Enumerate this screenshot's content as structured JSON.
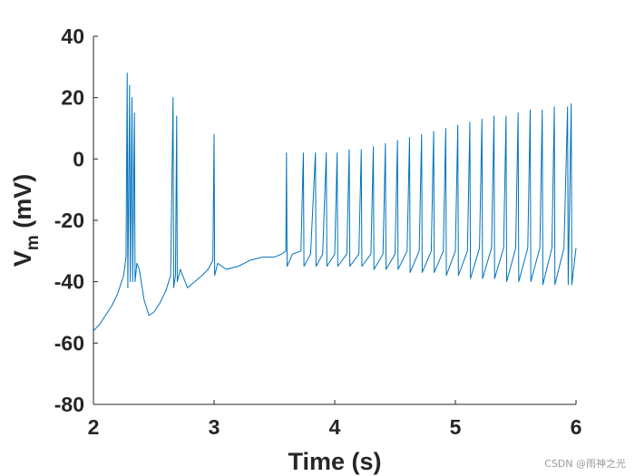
{
  "chart_data": {
    "type": "line",
    "title": "",
    "xlabel": "Time (s)",
    "ylabel": {
      "main": "V",
      "sub": "m",
      "unit": " (mV)"
    },
    "xlim": [
      2,
      6
    ],
    "ylim": [
      -80,
      40
    ],
    "xticks": [
      2,
      3,
      4,
      5,
      6
    ],
    "yticks": [
      -80,
      -60,
      -40,
      -20,
      0,
      20,
      40
    ],
    "grid": false,
    "line_color": "#0072BD",
    "series": [
      {
        "values": [
          [
            2.0,
            -56
          ],
          [
            2.05,
            -54
          ],
          [
            2.1,
            -51
          ],
          [
            2.15,
            -48
          ],
          [
            2.2,
            -44
          ],
          [
            2.25,
            -38
          ],
          [
            2.27,
            -32
          ],
          [
            2.28,
            28
          ],
          [
            2.285,
            -42
          ],
          [
            2.3,
            24
          ],
          [
            2.305,
            -40
          ],
          [
            2.32,
            20
          ],
          [
            2.325,
            -40
          ],
          [
            2.34,
            15
          ],
          [
            2.345,
            -40
          ],
          [
            2.36,
            -34
          ],
          [
            2.38,
            -36
          ],
          [
            2.42,
            -46
          ],
          [
            2.46,
            -51
          ],
          [
            2.5,
            -50
          ],
          [
            2.55,
            -47
          ],
          [
            2.6,
            -43
          ],
          [
            2.64,
            -38
          ],
          [
            2.66,
            20
          ],
          [
            2.665,
            -42
          ],
          [
            2.68,
            -38
          ],
          [
            2.69,
            14
          ],
          [
            2.695,
            -40
          ],
          [
            2.72,
            -36
          ],
          [
            2.78,
            -42
          ],
          [
            2.84,
            -40
          ],
          [
            2.9,
            -38
          ],
          [
            2.95,
            -36
          ],
          [
            2.99,
            -33
          ],
          [
            3.0,
            8
          ],
          [
            3.005,
            -38
          ],
          [
            3.03,
            -34
          ],
          [
            3.1,
            -36
          ],
          [
            3.2,
            -35
          ],
          [
            3.3,
            -33
          ],
          [
            3.4,
            -32
          ],
          [
            3.5,
            -32
          ],
          [
            3.56,
            -31
          ],
          [
            3.595,
            -30
          ],
          [
            3.6,
            2
          ],
          [
            3.605,
            -35
          ],
          [
            3.65,
            -31
          ],
          [
            3.72,
            -30
          ],
          [
            3.74,
            2
          ],
          [
            3.745,
            -35
          ],
          [
            3.8,
            -31
          ],
          [
            3.84,
            2
          ],
          [
            3.845,
            -35
          ],
          [
            3.9,
            -31
          ],
          [
            3.93,
            2
          ],
          [
            3.935,
            -35
          ],
          [
            4.0,
            -31
          ],
          [
            4.02,
            2
          ],
          [
            4.025,
            -35
          ],
          [
            4.1,
            -31
          ],
          [
            4.12,
            3
          ],
          [
            4.125,
            -35
          ],
          [
            4.2,
            -31
          ],
          [
            4.22,
            3
          ],
          [
            4.225,
            -35
          ],
          [
            4.3,
            -31
          ],
          [
            4.32,
            4
          ],
          [
            4.325,
            -36
          ],
          [
            4.4,
            -31
          ],
          [
            4.42,
            5
          ],
          [
            4.425,
            -36
          ],
          [
            4.5,
            -31
          ],
          [
            4.52,
            6
          ],
          [
            4.525,
            -36
          ],
          [
            4.6,
            -30
          ],
          [
            4.62,
            7
          ],
          [
            4.625,
            -37
          ],
          [
            4.7,
            -30
          ],
          [
            4.72,
            8
          ],
          [
            4.725,
            -37
          ],
          [
            4.8,
            -30
          ],
          [
            4.82,
            9
          ],
          [
            4.825,
            -37
          ],
          [
            4.9,
            -30
          ],
          [
            4.92,
            10
          ],
          [
            4.925,
            -38
          ],
          [
            5.0,
            -30
          ],
          [
            5.02,
            11
          ],
          [
            5.025,
            -38
          ],
          [
            5.1,
            -30
          ],
          [
            5.12,
            12
          ],
          [
            5.125,
            -39
          ],
          [
            5.2,
            -29
          ],
          [
            5.22,
            13
          ],
          [
            5.225,
            -39
          ],
          [
            5.3,
            -29
          ],
          [
            5.32,
            14
          ],
          [
            5.325,
            -39
          ],
          [
            5.4,
            -29
          ],
          [
            5.42,
            14
          ],
          [
            5.425,
            -40
          ],
          [
            5.5,
            -29
          ],
          [
            5.52,
            15
          ],
          [
            5.525,
            -40
          ],
          [
            5.6,
            -29
          ],
          [
            5.62,
            16
          ],
          [
            5.625,
            -40
          ],
          [
            5.7,
            -29
          ],
          [
            5.72,
            16
          ],
          [
            5.725,
            -41
          ],
          [
            5.8,
            -29
          ],
          [
            5.82,
            17
          ],
          [
            5.825,
            -41
          ],
          [
            5.9,
            -29
          ],
          [
            5.93,
            17
          ],
          [
            5.935,
            -41
          ],
          [
            5.96,
            18
          ],
          [
            5.965,
            -41
          ],
          [
            6.0,
            -29
          ]
        ]
      }
    ]
  },
  "watermark": "CSDN @雨神之光"
}
